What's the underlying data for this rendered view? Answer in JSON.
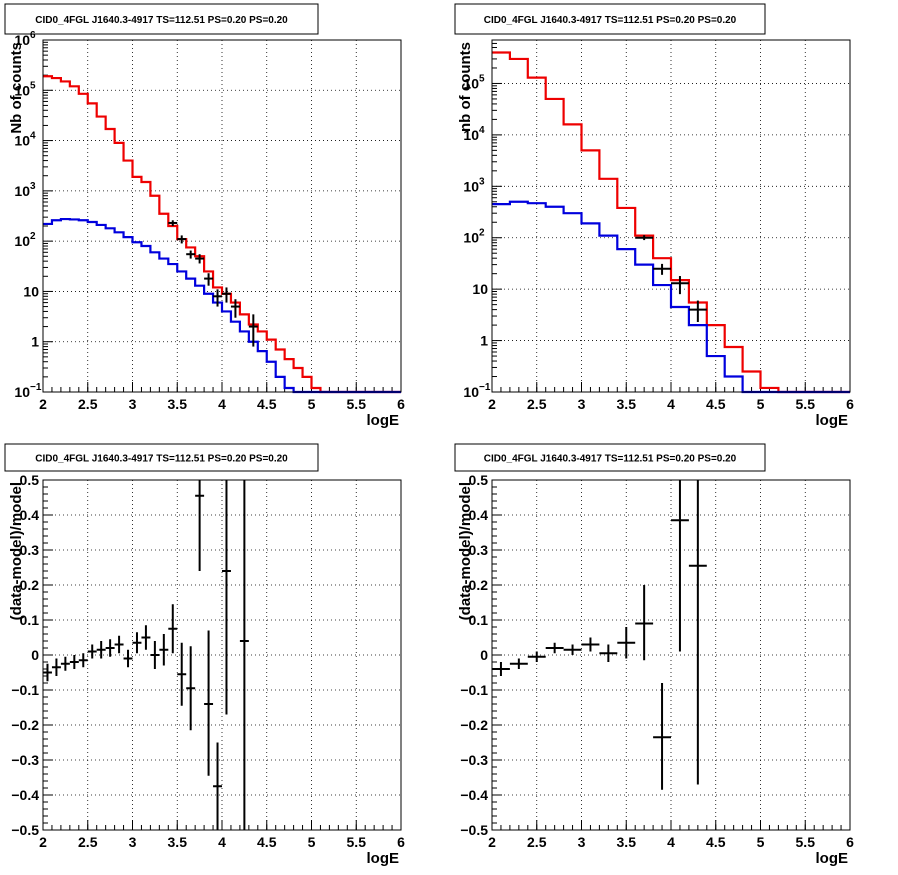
{
  "chart_data": [
    {
      "type": "line",
      "title": "CID0_4FGL J1640.3-4917 TS=112.51 PS=0.20 PS=0.20",
      "xlabel": "logE",
      "ylabel": "Nb of counts",
      "xlim": [
        2,
        6
      ],
      "ylim": [
        0.1,
        1000000
      ],
      "yscale": "log",
      "grid": true,
      "xticks": [
        "2",
        "2.5",
        "3",
        "3.5",
        "4",
        "4.5",
        "5",
        "5.5",
        "6"
      ],
      "yticks": [
        {
          "v": 0.1,
          "base": "10",
          "exp": "−1"
        },
        {
          "v": 1,
          "label": "1"
        },
        {
          "v": 10,
          "label": "10"
        },
        {
          "v": 100,
          "base": "10",
          "exp": "2"
        },
        {
          "v": 1000,
          "base": "10",
          "exp": "3"
        },
        {
          "v": 10000,
          "base": "10",
          "exp": "4"
        },
        {
          "v": 100000,
          "base": "10",
          "exp": "5"
        },
        {
          "v": 1000000,
          "base": "10",
          "exp": "6"
        }
      ],
      "bin_width": 0.1,
      "series": [
        {
          "kind": "hist",
          "color": "#ee0000",
          "values": [
            190000,
            175000,
            150000,
            120000,
            85000,
            55000,
            30000,
            17000,
            9000,
            4000,
            1900,
            1500,
            800,
            350,
            200,
            110,
            75,
            50,
            25,
            12,
            9,
            6,
            3.5,
            2.2,
            1.6,
            1.1,
            0.7,
            0.45,
            0.3,
            0.2,
            0.12,
            0.1,
            0.1,
            0.1,
            0.1,
            0.1,
            0.1,
            0.1,
            0.1,
            0.1
          ]
        },
        {
          "kind": "hist",
          "color": "#0000dd",
          "values": [
            220,
            260,
            275,
            270,
            260,
            240,
            210,
            180,
            150,
            120,
            95,
            80,
            60,
            45,
            35,
            25,
            18,
            13,
            9,
            6,
            4,
            2.5,
            1.6,
            1.0,
            0.65,
            0.4,
            0.2,
            0.12,
            0.1,
            0.1,
            0.1,
            0.1,
            0.1,
            0.1,
            0.1,
            0.1,
            0.1,
            0.1,
            0.1,
            0.1
          ]
        },
        {
          "kind": "points",
          "color": "#000000",
          "x": [
            3.45,
            3.55,
            3.65,
            3.75,
            3.85,
            3.95,
            4.05,
            4.15,
            4.35
          ],
          "y": [
            230,
            110,
            55,
            45,
            18,
            8,
            9,
            5,
            2
          ],
          "ylo": [
            200,
            90,
            45,
            36,
            13,
            5,
            6,
            3,
            0.8
          ],
          "yhi": [
            260,
            130,
            65,
            55,
            23,
            11,
            12,
            7,
            3.5
          ]
        }
      ]
    },
    {
      "type": "line",
      "title": "CID0_4FGL J1640.3-4917 TS=112.51 PS=0.20 PS=0.20",
      "xlabel": "logE",
      "ylabel": "nb of counts",
      "xlim": [
        2,
        6
      ],
      "ylim": [
        0.1,
        700000
      ],
      "yscale": "log",
      "grid": true,
      "xticks": [
        "2",
        "2.5",
        "3",
        "3.5",
        "4",
        "4.5",
        "5",
        "5.5",
        "6"
      ],
      "yticks": [
        {
          "v": 0.1,
          "base": "10",
          "exp": "−1"
        },
        {
          "v": 1,
          "label": "1"
        },
        {
          "v": 10,
          "label": "10"
        },
        {
          "v": 100,
          "base": "10",
          "exp": "2"
        },
        {
          "v": 1000,
          "base": "10",
          "exp": "3"
        },
        {
          "v": 10000,
          "base": "10",
          "exp": "4"
        },
        {
          "v": 100000,
          "base": "10",
          "exp": "5"
        }
      ],
      "bin_width": 0.2,
      "series": [
        {
          "kind": "hist",
          "color": "#ee0000",
          "values": [
            400000,
            300000,
            130000,
            50000,
            16000,
            5000,
            1400,
            380,
            110,
            40,
            15,
            5.5,
            2,
            0.75,
            0.25,
            0.12,
            0.1,
            0.1,
            0.1,
            0.1
          ]
        },
        {
          "kind": "hist",
          "color": "#0000dd",
          "values": [
            450,
            500,
            470,
            400,
            300,
            190,
            110,
            60,
            30,
            12,
            4.5,
            2,
            0.5,
            0.2,
            0.1,
            0.1,
            0.1,
            0.1,
            0.1,
            0.1
          ]
        },
        {
          "kind": "points",
          "color": "#000000",
          "x": [
            3.7,
            3.9,
            4.1,
            4.3
          ],
          "y": [
            100,
            25,
            13,
            4
          ],
          "ylo": [
            90,
            19,
            8,
            2.3
          ],
          "yhi": [
            112,
            31,
            18,
            6
          ]
        }
      ]
    },
    {
      "type": "scatter",
      "title": "CID0_4FGL J1640.3-4917 TS=112.51 PS=0.20 PS=0.20",
      "xlabel": "logE",
      "ylabel": "(data-model)/model",
      "xlim": [
        2,
        6
      ],
      "ylim": [
        -0.5,
        0.5
      ],
      "grid": true,
      "xticks": [
        "2",
        "2.5",
        "3",
        "3.5",
        "4",
        "4.5",
        "5",
        "5.5",
        "6"
      ],
      "yticks": [
        "−0.5",
        "−0.4",
        "−0.3",
        "−0.2",
        "−0.1",
        "0",
        "0.1",
        "0.2",
        "0.3",
        "0.4",
        "0.5"
      ],
      "ytick_values": [
        -0.5,
        -0.4,
        -0.3,
        -0.2,
        -0.1,
        0,
        0.1,
        0.2,
        0.3,
        0.4,
        0.5
      ],
      "bin_width": 0.1,
      "series": [
        {
          "kind": "points",
          "color": "#000000",
          "x": [
            2.05,
            2.15,
            2.25,
            2.35,
            2.45,
            2.55,
            2.65,
            2.75,
            2.85,
            2.95,
            3.05,
            3.15,
            3.25,
            3.35,
            3.45,
            3.55,
            3.65,
            3.75,
            3.85,
            3.95,
            4.05,
            4.25
          ],
          "y": [
            -0.05,
            -0.035,
            -0.025,
            -0.02,
            -0.015,
            0.01,
            0.015,
            0.02,
            0.03,
            -0.01,
            0.035,
            0.05,
            0.0,
            0.015,
            0.075,
            -0.055,
            -0.095,
            0.455,
            -0.14,
            -0.375,
            0.24,
            0.04
          ],
          "ylo": [
            -0.075,
            -0.06,
            -0.045,
            -0.04,
            -0.035,
            -0.01,
            -0.01,
            -0.005,
            0.005,
            -0.035,
            0.005,
            0.015,
            -0.04,
            -0.03,
            0.005,
            -0.145,
            -0.215,
            0.24,
            -0.345,
            -0.5,
            -0.17,
            -0.5
          ],
          "yhi": [
            -0.025,
            -0.01,
            -0.005,
            0.0,
            0.005,
            0.03,
            0.04,
            0.045,
            0.055,
            0.015,
            0.065,
            0.085,
            0.04,
            0.06,
            0.145,
            0.035,
            0.025,
            0.5,
            0.07,
            -0.25,
            0.5,
            0.5
          ]
        }
      ]
    },
    {
      "type": "scatter",
      "title": "CID0_4FGL J1640.3-4917 TS=112.51 PS=0.20 PS=0.20",
      "xlabel": "logE",
      "ylabel": "(data-model)/model",
      "xlim": [
        2,
        6
      ],
      "ylim": [
        -0.5,
        0.5
      ],
      "grid": true,
      "xticks": [
        "2",
        "2.5",
        "3",
        "3.5",
        "4",
        "4.5",
        "5",
        "5.5",
        "6"
      ],
      "yticks": [
        "−0.5",
        "−0.4",
        "−0.3",
        "−0.2",
        "−0.1",
        "0",
        "0.1",
        "0.2",
        "0.3",
        "0.4",
        "0.5"
      ],
      "ytick_values": [
        -0.5,
        -0.4,
        -0.3,
        -0.2,
        -0.1,
        0,
        0.1,
        0.2,
        0.3,
        0.4,
        0.5
      ],
      "bin_width": 0.2,
      "series": [
        {
          "kind": "points",
          "color": "#000000",
          "x": [
            2.1,
            2.3,
            2.5,
            2.7,
            2.9,
            3.1,
            3.3,
            3.5,
            3.7,
            3.9,
            4.1,
            4.3
          ],
          "y": [
            -0.04,
            -0.025,
            -0.005,
            0.02,
            0.015,
            0.03,
            0.005,
            0.035,
            0.09,
            -0.235,
            0.385,
            0.255
          ],
          "ylo": [
            -0.06,
            -0.04,
            -0.02,
            0.005,
            0.0,
            0.01,
            -0.02,
            -0.01,
            -0.015,
            -0.385,
            0.01,
            -0.37
          ],
          "yhi": [
            -0.02,
            -0.01,
            0.01,
            0.035,
            0.03,
            0.05,
            0.03,
            0.08,
            0.2,
            -0.08,
            0.5,
            0.5
          ]
        }
      ]
    }
  ]
}
